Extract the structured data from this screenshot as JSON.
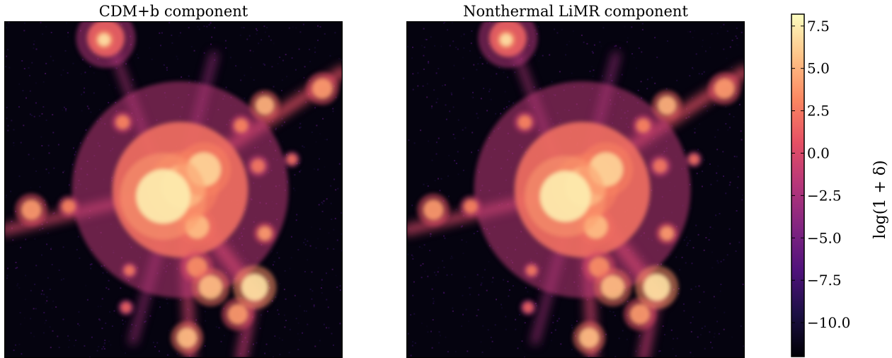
{
  "chart_data": [
    {
      "type": "heatmap",
      "title": "CDM+b component",
      "xlabel": "",
      "ylabel": "",
      "colormap": "magma",
      "background_color": "#05030f",
      "blobs": [
        {
          "x": 0.295,
          "y": 0.055,
          "r": 0.018,
          "v": 7.0
        },
        {
          "x": 0.3,
          "y": 0.05,
          "r": 0.055,
          "v": 1.5
        },
        {
          "x": 0.47,
          "y": 0.52,
          "r": 0.08,
          "v": 7.5
        },
        {
          "x": 0.53,
          "y": 0.49,
          "r": 0.065,
          "v": 6.5
        },
        {
          "x": 0.59,
          "y": 0.44,
          "r": 0.05,
          "v": 6.5
        },
        {
          "x": 0.52,
          "y": 0.5,
          "r": 0.2,
          "v": 2.0
        },
        {
          "x": 0.57,
          "y": 0.61,
          "r": 0.035,
          "v": 5.5
        },
        {
          "x": 0.74,
          "y": 0.79,
          "r": 0.04,
          "v": 7.0
        },
        {
          "x": 0.61,
          "y": 0.79,
          "r": 0.035,
          "v": 5.5
        },
        {
          "x": 0.57,
          "y": 0.73,
          "r": 0.03,
          "v": 3.5
        },
        {
          "x": 0.69,
          "y": 0.87,
          "r": 0.03,
          "v": 4.0
        },
        {
          "x": 0.54,
          "y": 0.94,
          "r": 0.03,
          "v": 5.5
        },
        {
          "x": 0.77,
          "y": 0.63,
          "r": 0.02,
          "v": 4.0
        },
        {
          "x": 0.77,
          "y": 0.25,
          "r": 0.028,
          "v": 5.0
        },
        {
          "x": 0.94,
          "y": 0.2,
          "r": 0.03,
          "v": 4.0
        },
        {
          "x": 0.7,
          "y": 0.31,
          "r": 0.02,
          "v": 3.0
        },
        {
          "x": 0.08,
          "y": 0.56,
          "r": 0.03,
          "v": 4.0
        },
        {
          "x": 0.19,
          "y": 0.55,
          "r": 0.02,
          "v": 3.0
        },
        {
          "x": 0.35,
          "y": 0.3,
          "r": 0.02,
          "v": 3.0
        },
        {
          "x": 0.37,
          "y": 0.74,
          "r": 0.015,
          "v": 2.5
        },
        {
          "x": 0.75,
          "y": 0.43,
          "r": 0.02,
          "v": 2.5
        },
        {
          "x": 0.85,
          "y": 0.41,
          "r": 0.015,
          "v": 2.0
        },
        {
          "x": 0.36,
          "y": 0.85,
          "r": 0.015,
          "v": 1.5
        }
      ],
      "filaments": [
        {
          "x1": 0.5,
          "y1": 0.48,
          "x2": 1.0,
          "y2": 0.15,
          "w": 0.035,
          "v": 0.5
        },
        {
          "x1": 0.5,
          "y1": 0.5,
          "x2": 0.0,
          "y2": 0.62,
          "w": 0.03,
          "v": 0.0
        },
        {
          "x1": 0.52,
          "y1": 0.52,
          "x2": 0.75,
          "y2": 0.82,
          "w": 0.04,
          "v": 0.5
        },
        {
          "x1": 0.53,
          "y1": 0.55,
          "x2": 0.55,
          "y2": 1.0,
          "w": 0.03,
          "v": -0.5
        },
        {
          "x1": 0.74,
          "y1": 0.8,
          "x2": 0.7,
          "y2": 1.0,
          "w": 0.03,
          "v": -1.0
        },
        {
          "x1": 0.46,
          "y1": 0.46,
          "x2": 0.32,
          "y2": 0.08,
          "w": 0.02,
          "v": -2.0
        },
        {
          "x1": 0.5,
          "y1": 0.52,
          "x2": 0.38,
          "y2": 0.95,
          "w": 0.02,
          "v": -2.5
        },
        {
          "x1": 0.52,
          "y1": 0.48,
          "x2": 0.62,
          "y2": 0.1,
          "w": 0.02,
          "v": -3.0
        }
      ]
    },
    {
      "type": "heatmap",
      "title": "Nonthermal LiMR component",
      "xlabel": "",
      "ylabel": "",
      "colormap": "magma",
      "background_color": "#05030f",
      "blobs": [
        {
          "x": 0.295,
          "y": 0.055,
          "r": 0.018,
          "v": 7.0
        },
        {
          "x": 0.3,
          "y": 0.05,
          "r": 0.055,
          "v": 1.5
        },
        {
          "x": 0.47,
          "y": 0.52,
          "r": 0.075,
          "v": 7.5
        },
        {
          "x": 0.53,
          "y": 0.49,
          "r": 0.06,
          "v": 6.5
        },
        {
          "x": 0.59,
          "y": 0.44,
          "r": 0.05,
          "v": 6.5
        },
        {
          "x": 0.52,
          "y": 0.5,
          "r": 0.2,
          "v": 2.0
        },
        {
          "x": 0.56,
          "y": 0.61,
          "r": 0.035,
          "v": 5.5
        },
        {
          "x": 0.74,
          "y": 0.79,
          "r": 0.04,
          "v": 7.0
        },
        {
          "x": 0.61,
          "y": 0.79,
          "r": 0.035,
          "v": 5.5
        },
        {
          "x": 0.57,
          "y": 0.73,
          "r": 0.03,
          "v": 3.5
        },
        {
          "x": 0.69,
          "y": 0.87,
          "r": 0.03,
          "v": 4.0
        },
        {
          "x": 0.54,
          "y": 0.94,
          "r": 0.03,
          "v": 5.5
        },
        {
          "x": 0.77,
          "y": 0.63,
          "r": 0.02,
          "v": 4.0
        },
        {
          "x": 0.77,
          "y": 0.25,
          "r": 0.028,
          "v": 5.0
        },
        {
          "x": 0.94,
          "y": 0.2,
          "r": 0.03,
          "v": 4.0
        },
        {
          "x": 0.7,
          "y": 0.31,
          "r": 0.02,
          "v": 3.0
        },
        {
          "x": 0.08,
          "y": 0.56,
          "r": 0.03,
          "v": 4.0
        },
        {
          "x": 0.19,
          "y": 0.55,
          "r": 0.02,
          "v": 3.0
        },
        {
          "x": 0.35,
          "y": 0.3,
          "r": 0.02,
          "v": 3.0
        },
        {
          "x": 0.37,
          "y": 0.74,
          "r": 0.015,
          "v": 2.5
        },
        {
          "x": 0.75,
          "y": 0.43,
          "r": 0.02,
          "v": 2.5
        },
        {
          "x": 0.85,
          "y": 0.41,
          "r": 0.015,
          "v": 2.0
        },
        {
          "x": 0.36,
          "y": 0.85,
          "r": 0.015,
          "v": 1.5
        }
      ],
      "filaments": [
        {
          "x1": 0.5,
          "y1": 0.48,
          "x2": 1.0,
          "y2": 0.15,
          "w": 0.035,
          "v": 0.5
        },
        {
          "x1": 0.5,
          "y1": 0.5,
          "x2": 0.0,
          "y2": 0.62,
          "w": 0.03,
          "v": 0.0
        },
        {
          "x1": 0.52,
          "y1": 0.52,
          "x2": 0.75,
          "y2": 0.82,
          "w": 0.04,
          "v": 0.5
        },
        {
          "x1": 0.53,
          "y1": 0.55,
          "x2": 0.55,
          "y2": 1.0,
          "w": 0.03,
          "v": -0.5
        },
        {
          "x1": 0.74,
          "y1": 0.8,
          "x2": 0.7,
          "y2": 1.0,
          "w": 0.03,
          "v": -1.0
        },
        {
          "x1": 0.46,
          "y1": 0.46,
          "x2": 0.32,
          "y2": 0.08,
          "w": 0.02,
          "v": -2.0
        },
        {
          "x1": 0.5,
          "y1": 0.52,
          "x2": 0.38,
          "y2": 0.95,
          "w": 0.02,
          "v": -2.5
        },
        {
          "x1": 0.52,
          "y1": 0.48,
          "x2": 0.62,
          "y2": 0.1,
          "w": 0.02,
          "v": -3.0
        }
      ]
    }
  ],
  "colorbar": {
    "label": "log(1 + δ)",
    "vmin": -12.0,
    "vmax": 8.2,
    "ticks": [
      7.5,
      5.0,
      2.5,
      0.0,
      -2.5,
      -5.0,
      -7.5,
      -10.0
    ],
    "tick_labels": [
      "7.5",
      "5.0",
      "2.5",
      "0.0",
      "−2.5",
      "−5.0",
      "−7.5",
      "−10.0"
    ],
    "colormap_stops": [
      "#000004",
      "#1c1044",
      "#4f127b",
      "#812581",
      "#b5367a",
      "#e55064",
      "#fb8761",
      "#fec287",
      "#fcfdbf"
    ]
  }
}
